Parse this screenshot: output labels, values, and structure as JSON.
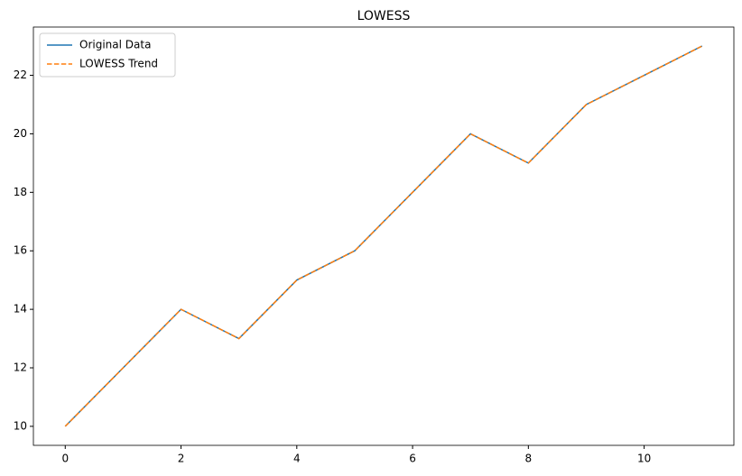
{
  "chart_data": {
    "type": "line",
    "title": "LOWESS",
    "x": [
      0,
      1,
      2,
      3,
      4,
      5,
      6,
      7,
      8,
      9,
      10,
      11
    ],
    "series": [
      {
        "name": "Original Data",
        "color": "#1f77b4",
        "dash": false,
        "values": [
          10,
          12,
          14,
          13,
          15,
          16,
          18,
          20,
          19,
          21,
          22,
          23
        ]
      },
      {
        "name": "LOWESS Trend",
        "color": "#ff7f0e",
        "dash": true,
        "values": [
          10,
          12,
          14,
          13,
          15,
          16,
          18,
          20,
          19,
          21,
          22,
          23
        ]
      }
    ],
    "xlim": [
      -0.55,
      11.55
    ],
    "ylim": [
      9.35,
      23.65
    ],
    "xticks": [
      0,
      2,
      4,
      6,
      8,
      10
    ],
    "yticks": [
      10,
      12,
      14,
      16,
      18,
      20,
      22
    ],
    "grid": false,
    "legend": "upper-left"
  }
}
